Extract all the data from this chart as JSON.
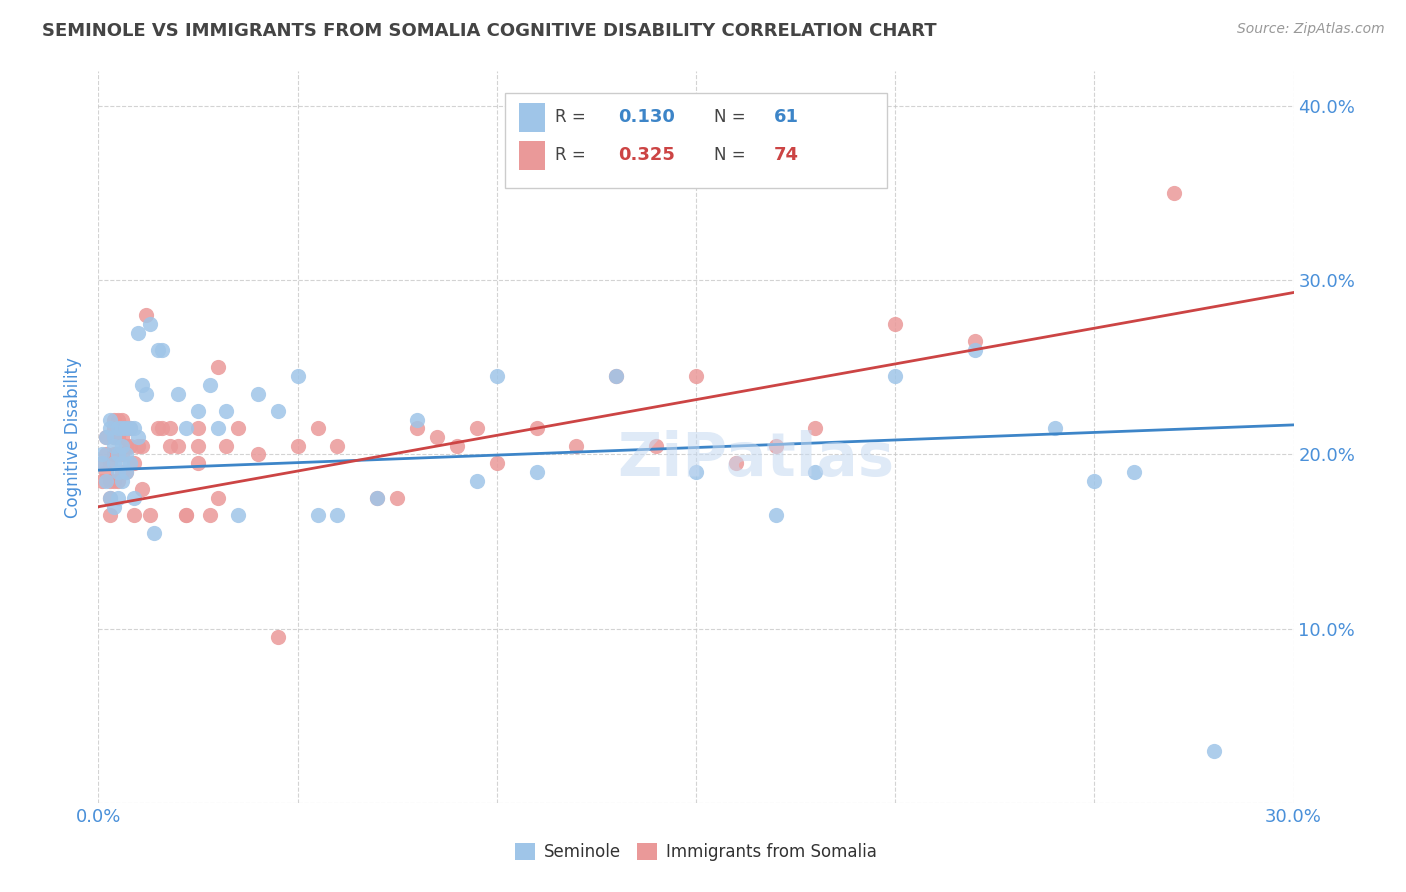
{
  "title": "SEMINOLE VS IMMIGRANTS FROM SOMALIA COGNITIVE DISABILITY CORRELATION CHART",
  "source": "Source: ZipAtlas.com",
  "ylabel": "Cognitive Disability",
  "xlim": [
    0.0,
    0.3
  ],
  "ylim": [
    0.0,
    0.42
  ],
  "x_ticks": [
    0.0,
    0.05,
    0.1,
    0.15,
    0.2,
    0.25,
    0.3
  ],
  "y_ticks": [
    0.0,
    0.1,
    0.2,
    0.3,
    0.4
  ],
  "seminole_color": "#9fc5e8",
  "somalia_color": "#ea9999",
  "seminole_line_color": "#3d85c8",
  "somalia_line_color": "#cc4444",
  "seminole_R": 0.13,
  "seminole_N": 61,
  "somalia_R": 0.325,
  "somalia_N": 74,
  "watermark": "ZiPatlas",
  "seminole_x": [
    0.001,
    0.001,
    0.002,
    0.002,
    0.003,
    0.003,
    0.003,
    0.004,
    0.004,
    0.004,
    0.004,
    0.005,
    0.005,
    0.005,
    0.005,
    0.006,
    0.006,
    0.006,
    0.006,
    0.007,
    0.007,
    0.007,
    0.008,
    0.008,
    0.009,
    0.009,
    0.01,
    0.01,
    0.011,
    0.012,
    0.013,
    0.014,
    0.015,
    0.016,
    0.02,
    0.022,
    0.025,
    0.028,
    0.03,
    0.032,
    0.035,
    0.04,
    0.045,
    0.05,
    0.055,
    0.06,
    0.07,
    0.08,
    0.095,
    0.1,
    0.11,
    0.13,
    0.15,
    0.17,
    0.18,
    0.2,
    0.22,
    0.24,
    0.25,
    0.26,
    0.28
  ],
  "seminole_y": [
    0.195,
    0.2,
    0.21,
    0.185,
    0.22,
    0.215,
    0.175,
    0.21,
    0.205,
    0.195,
    0.17,
    0.215,
    0.2,
    0.19,
    0.175,
    0.215,
    0.205,
    0.195,
    0.185,
    0.215,
    0.2,
    0.19,
    0.215,
    0.195,
    0.215,
    0.175,
    0.27,
    0.21,
    0.24,
    0.235,
    0.275,
    0.155,
    0.26,
    0.26,
    0.235,
    0.215,
    0.225,
    0.24,
    0.215,
    0.225,
    0.165,
    0.235,
    0.225,
    0.245,
    0.165,
    0.165,
    0.175,
    0.22,
    0.185,
    0.245,
    0.19,
    0.245,
    0.19,
    0.165,
    0.19,
    0.245,
    0.26,
    0.215,
    0.185,
    0.19,
    0.03
  ],
  "somalia_x": [
    0.001,
    0.001,
    0.002,
    0.002,
    0.002,
    0.003,
    0.003,
    0.003,
    0.003,
    0.004,
    0.004,
    0.004,
    0.004,
    0.004,
    0.005,
    0.005,
    0.005,
    0.005,
    0.005,
    0.006,
    0.006,
    0.006,
    0.006,
    0.006,
    0.007,
    0.007,
    0.007,
    0.008,
    0.008,
    0.009,
    0.009,
    0.01,
    0.011,
    0.011,
    0.012,
    0.013,
    0.015,
    0.016,
    0.018,
    0.018,
    0.02,
    0.022,
    0.022,
    0.025,
    0.025,
    0.025,
    0.028,
    0.03,
    0.03,
    0.032,
    0.035,
    0.04,
    0.045,
    0.05,
    0.055,
    0.06,
    0.07,
    0.075,
    0.08,
    0.085,
    0.09,
    0.095,
    0.1,
    0.11,
    0.12,
    0.13,
    0.14,
    0.15,
    0.16,
    0.17,
    0.18,
    0.2,
    0.22,
    0.27
  ],
  "somalia_y": [
    0.195,
    0.185,
    0.21,
    0.2,
    0.19,
    0.195,
    0.185,
    0.175,
    0.165,
    0.22,
    0.215,
    0.21,
    0.2,
    0.185,
    0.22,
    0.215,
    0.21,
    0.2,
    0.185,
    0.22,
    0.215,
    0.21,
    0.2,
    0.19,
    0.215,
    0.205,
    0.19,
    0.215,
    0.205,
    0.195,
    0.165,
    0.205,
    0.205,
    0.18,
    0.28,
    0.165,
    0.215,
    0.215,
    0.215,
    0.205,
    0.205,
    0.165,
    0.165,
    0.215,
    0.205,
    0.195,
    0.165,
    0.25,
    0.175,
    0.205,
    0.215,
    0.2,
    0.095,
    0.205,
    0.215,
    0.205,
    0.175,
    0.175,
    0.215,
    0.21,
    0.205,
    0.215,
    0.195,
    0.215,
    0.205,
    0.245,
    0.205,
    0.245,
    0.195,
    0.205,
    0.215,
    0.275,
    0.265,
    0.35
  ],
  "background_color": "#ffffff",
  "grid_color": "#c8c8c8",
  "title_color": "#444444",
  "axis_label_color": "#4a90d9",
  "tick_label_color": "#4a90d9"
}
